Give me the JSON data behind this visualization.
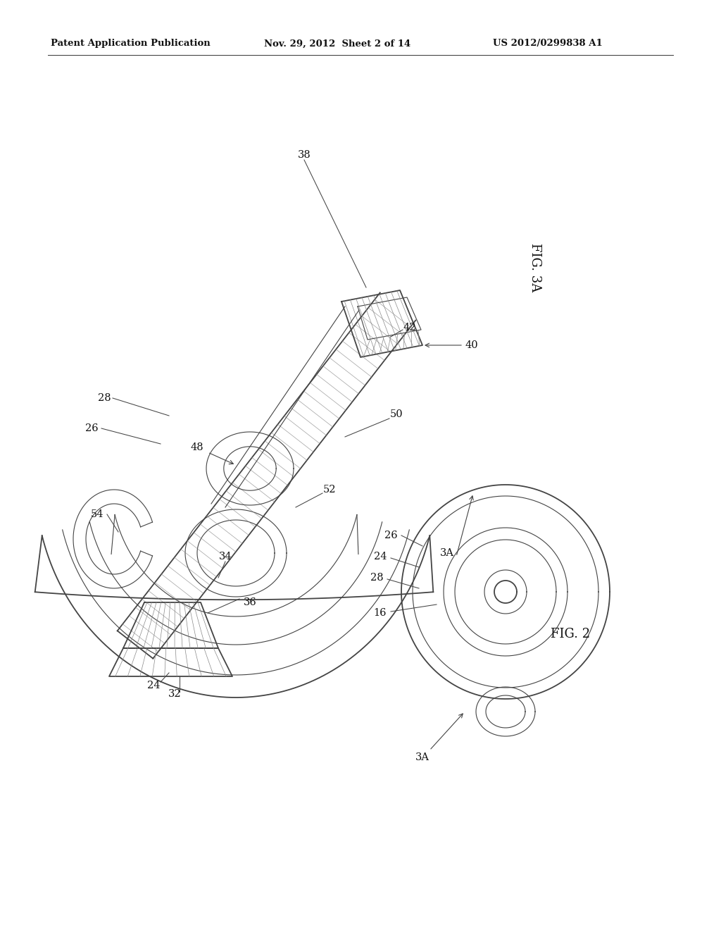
{
  "bg_color": "#ffffff",
  "lc": "#444444",
  "lc_light": "#888888",
  "header_left": "Patent Application Publication",
  "header_mid": "Nov. 29, 2012  Sheet 2 of 14",
  "header_right": "US 2012/0299838 A1",
  "fig2_label": "FIG. 2",
  "fig3a_label": "FIG. 3A",
  "lw_main": 1.3,
  "lw_thin": 0.8,
  "lw_hatch": 0.5
}
